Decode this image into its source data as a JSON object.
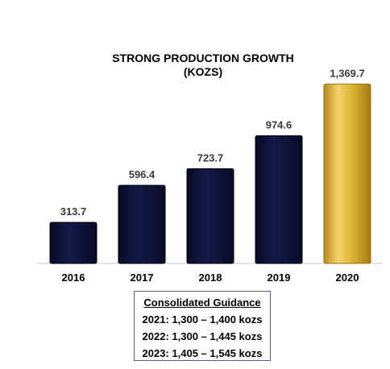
{
  "chart_data": {
    "type": "bar",
    "title": "STRONG PRODUCTION GROWTH",
    "subtitle": "(KOZS)",
    "categories": [
      "2016",
      "2017",
      "2018",
      "2019",
      "2020"
    ],
    "values": [
      313.7,
      596.4,
      723.7,
      974.6,
      1369.7
    ],
    "value_labels": [
      "313.7",
      "596.4",
      "723.7",
      "974.6",
      "1,369.7"
    ],
    "colors": [
      "#0b1035",
      "#0b1035",
      "#0b1035",
      "#0b1035",
      "#d4a82a"
    ],
    "highlight_color": "#d4a82a",
    "xlabel": "",
    "ylabel": "",
    "ylim": [
      0,
      1400
    ],
    "grid": false,
    "legend": "none"
  },
  "guidance": {
    "heading": "Consolidated Guidance",
    "lines": [
      "2021: 1,300 – 1,400 kozs",
      "2022: 1,300 – 1,445 kozs",
      "2023: 1,405 – 1,545 kozs"
    ]
  }
}
